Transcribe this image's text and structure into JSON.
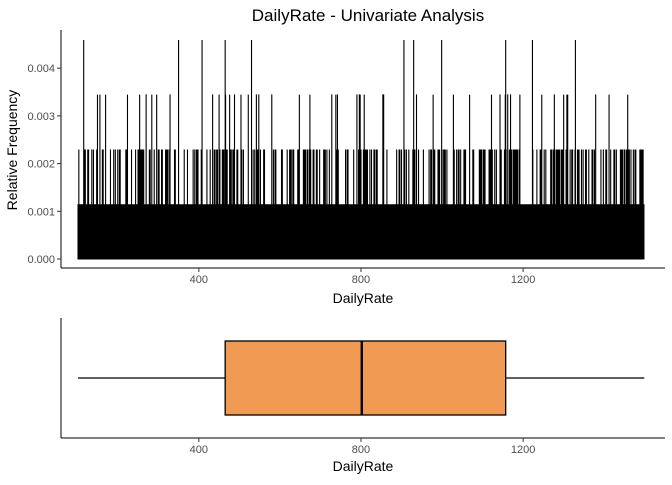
{
  "title": "DailyRate - Univariate Analysis",
  "chart_data": [
    {
      "type": "bar",
      "subtype": "relative-frequency-spikes",
      "title": "DailyRate - Univariate Analysis",
      "xlabel": "DailyRate",
      "ylabel": "Relative Frequency",
      "xlim": [
        60,
        1550
      ],
      "ylim": [
        0,
        0.0048
      ],
      "x_ticks": [
        400,
        800,
        1200
      ],
      "y_ticks": [
        0.0,
        0.001,
        0.002,
        0.003,
        0.004
      ],
      "y_tick_labels": [
        "0.000",
        "0.001",
        "0.002",
        "0.003",
        "0.004"
      ],
      "grid": false,
      "x_range_of_values": [
        102,
        1499
      ],
      "bar_color": "#000000",
      "peak_values": [
        {
          "x": 116,
          "y": 0.00459
        },
        {
          "x": 270,
          "y": 0.00345
        },
        {
          "x": 329,
          "y": 0.00345
        },
        {
          "x": 350,
          "y": 0.00459
        },
        {
          "x": 408,
          "y": 0.00459
        },
        {
          "x": 434,
          "y": 0.00345
        },
        {
          "x": 465,
          "y": 0.00459
        },
        {
          "x": 488,
          "y": 0.00345
        },
        {
          "x": 530,
          "y": 0.00459
        },
        {
          "x": 542,
          "y": 0.00345
        },
        {
          "x": 548,
          "y": 0.00345
        },
        {
          "x": 580,
          "y": 0.00345
        },
        {
          "x": 728,
          "y": 0.00345
        },
        {
          "x": 742,
          "y": 0.00345
        },
        {
          "x": 790,
          "y": 0.00345
        },
        {
          "x": 796,
          "y": 0.00345
        },
        {
          "x": 854,
          "y": 0.00345
        },
        {
          "x": 856,
          "y": 0.00345
        },
        {
          "x": 906,
          "y": 0.00459
        },
        {
          "x": 930,
          "y": 0.00459
        },
        {
          "x": 937,
          "y": 0.00345
        },
        {
          "x": 999,
          "y": 0.00459
        },
        {
          "x": 1143,
          "y": 0.00345
        },
        {
          "x": 1157,
          "y": 0.00459
        },
        {
          "x": 1162,
          "y": 0.00345
        },
        {
          "x": 1169,
          "y": 0.00345
        },
        {
          "x": 1223,
          "y": 0.00459
        },
        {
          "x": 1277,
          "y": 0.00345
        },
        {
          "x": 1329,
          "y": 0.00459
        },
        {
          "x": 1379,
          "y": 0.00345
        }
      ]
    },
    {
      "type": "boxplot",
      "xlabel": "DailyRate",
      "xlim": [
        60,
        1550
      ],
      "x_ticks": [
        400,
        800,
        1200
      ],
      "grid": false,
      "fill_color": "#f19a54",
      "stroke_color": "#000000",
      "min": 102,
      "q1": 465,
      "median": 802,
      "q3": 1157,
      "max": 1499
    }
  ]
}
